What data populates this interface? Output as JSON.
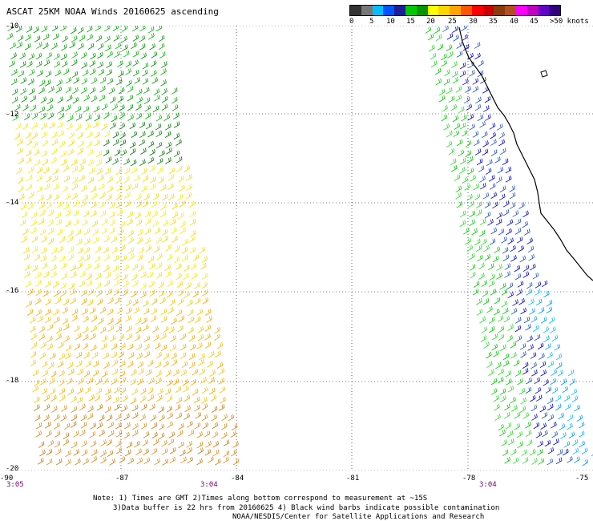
{
  "title": "ASCAT 25KM NOAA Winds 20160625 ascending",
  "colorbar": {
    "colors": [
      "#333333",
      "#777777",
      "#00bfff",
      "#0055ff",
      "#1e1e96",
      "#00c800",
      "#009600",
      "#ffff00",
      "#ffd400",
      "#ffa500",
      "#ff5500",
      "#ff0000",
      "#cc0000",
      "#8b3a0a",
      "#b05020",
      "#ff00ff",
      "#c000c0",
      "#6400c8",
      "#320080"
    ],
    "labels": [
      "0",
      "5",
      "10",
      "15",
      "20",
      "25",
      "30",
      "35",
      "40",
      "45",
      ">50 knots"
    ]
  },
  "map": {
    "lat_labels": [
      "-10",
      "-12",
      "-14",
      "-16",
      "-18",
      "-20"
    ],
    "lon_labels": [
      "-90",
      "-87",
      "-84",
      "-81",
      "-78",
      "-75"
    ],
    "times": [
      "3:05",
      "3:04",
      "3:04"
    ]
  },
  "notes": [
    "Note: 1) Times are GMT 2)Times along bottom correspond to measurement at ~15S",
    "3)Data buffer is 22 hrs from 20160625 4) Black wind barbs indicate possible contamination",
    "NOAA/NESDIS/Center for Satellite Applications and Research"
  ]
}
